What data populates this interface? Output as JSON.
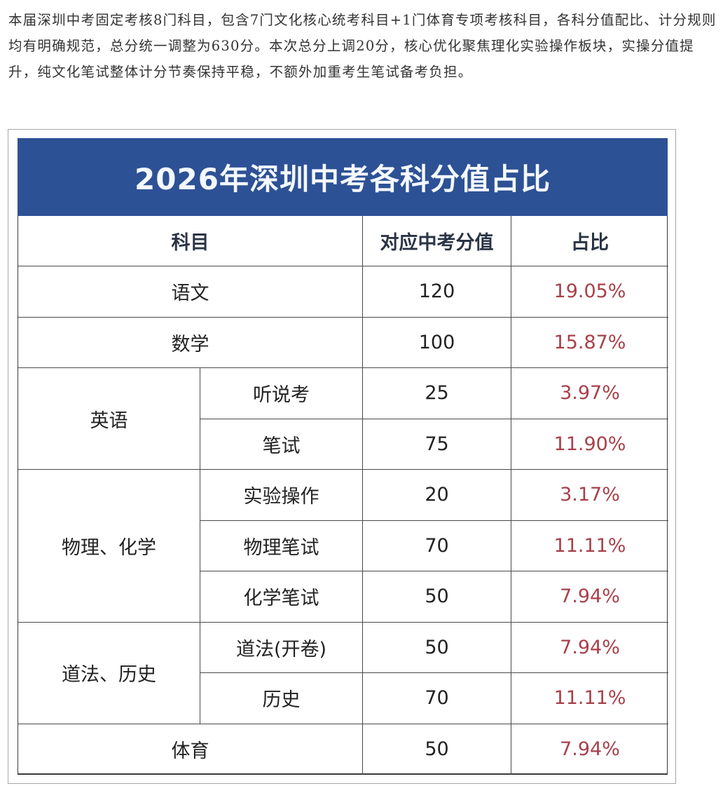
{
  "article": {
    "intro": "本届深圳中考固定考核8门科目，包含7门文化核心统考科目+1门体育专项考核科目，各科分值配比、计分规则均有明确规范，总分统一调整为630分。本次总分上调20分，核心优化聚焦理化实验操作板块，实操分值提升，纯文化笔试整体计分节奏保持平稳，不额外加重考生笔试备考负担。"
  },
  "table": {
    "title": "2026年深圳中考各科分值占比",
    "headers": {
      "subject": "科目",
      "score": "对应中考分值",
      "ratio": "占比"
    },
    "colors": {
      "banner": "#2d5195",
      "ratio_text": "#a8404a"
    },
    "rows": [
      {
        "subject": "语文",
        "sub": "",
        "score": "120",
        "ratio": "19.05%"
      },
      {
        "subject": "数学",
        "sub": "",
        "score": "100",
        "ratio": "15.87%"
      },
      {
        "subject": "英语",
        "sub": "听说考",
        "score": "25",
        "ratio": "3.97%"
      },
      {
        "subject": "英语",
        "sub": "笔试",
        "score": "75",
        "ratio": "11.90%"
      },
      {
        "subject": "物理、化学",
        "sub": "实验操作",
        "score": "20",
        "ratio": "3.17%"
      },
      {
        "subject": "物理、化学",
        "sub": "物理笔试",
        "score": "70",
        "ratio": "11.11%"
      },
      {
        "subject": "物理、化学",
        "sub": "化学笔试",
        "score": "50",
        "ratio": "7.94%"
      },
      {
        "subject": "道法、历史",
        "sub": "道法(开卷)",
        "score": "50",
        "ratio": "7.94%"
      },
      {
        "subject": "道法、历史",
        "sub": "历史",
        "score": "70",
        "ratio": "11.11%"
      },
      {
        "subject": "体育",
        "sub": "",
        "score": "50",
        "ratio": "7.94%"
      }
    ]
  }
}
